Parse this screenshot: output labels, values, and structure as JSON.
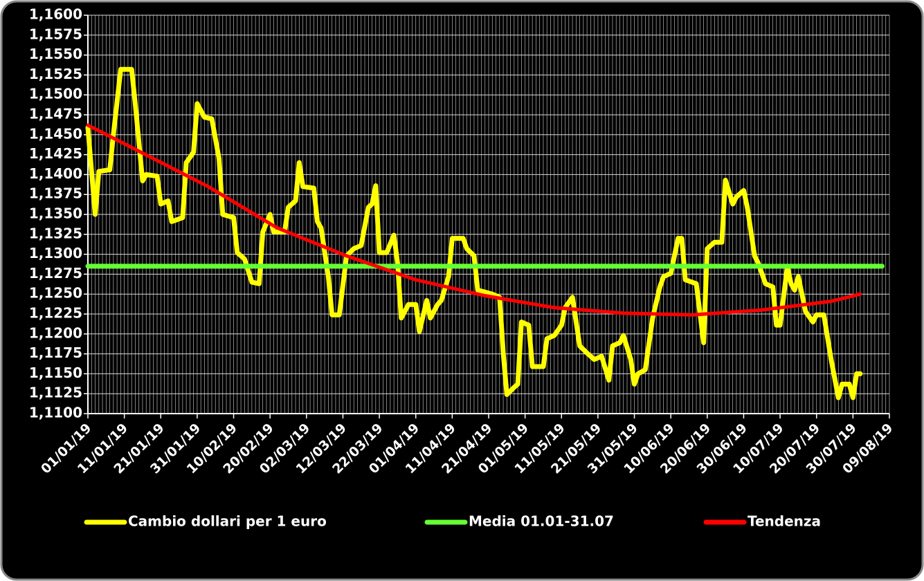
{
  "chart_data": {
    "type": "line",
    "xlim": [
      "01/01/19",
      "09/08/19"
    ],
    "xticks": [
      "01/01/19",
      "11/01/19",
      "21/01/19",
      "31/01/19",
      "10/02/19",
      "20/02/19",
      "02/03/19",
      "12/03/19",
      "22/03/19",
      "01/04/19",
      "11/04/19",
      "21/04/19",
      "01/05/19",
      "11/05/19",
      "21/05/19",
      "31/05/19",
      "10/06/19",
      "20/06/19",
      "30/06/19",
      "10/07/19",
      "20/07/19",
      "30/07/19",
      "09/08/19"
    ],
    "ylim": [
      1.11,
      1.16
    ],
    "yticks": [
      {
        "value": 1.11,
        "label": "1,1100"
      },
      {
        "value": 1.1125,
        "label": "1,1125"
      },
      {
        "value": 1.115,
        "label": "1,1150"
      },
      {
        "value": 1.1175,
        "label": "1,1175"
      },
      {
        "value": 1.12,
        "label": "1,1200"
      },
      {
        "value": 1.1225,
        "label": "1,1225"
      },
      {
        "value": 1.125,
        "label": "1,1250"
      },
      {
        "value": 1.1275,
        "label": "1,1275"
      },
      {
        "value": 1.13,
        "label": "1,1300"
      },
      {
        "value": 1.1325,
        "label": "1,1325"
      },
      {
        "value": 1.135,
        "label": "1,1350"
      },
      {
        "value": 1.1375,
        "label": "1,1375"
      },
      {
        "value": 1.14,
        "label": "1,1400"
      },
      {
        "value": 1.1425,
        "label": "1,1425"
      },
      {
        "value": 1.145,
        "label": "1,1450"
      },
      {
        "value": 1.1475,
        "label": "1,1475"
      },
      {
        "value": 1.15,
        "label": "1,1500"
      },
      {
        "value": 1.1525,
        "label": "1,1525"
      },
      {
        "value": 1.155,
        "label": "1,1550"
      },
      {
        "value": 1.1575,
        "label": "1,1575"
      },
      {
        "value": 1.16,
        "label": "1,1600"
      }
    ],
    "grid": true,
    "legend": "bottom",
    "series": [
      {
        "name": "Cambio dollari per 1 euro",
        "color": "#ffff00",
        "x": [
          "01/01/19",
          "03/01/19",
          "04/01/19",
          "07/01/19",
          "08/01/19",
          "10/01/19",
          "13/01/19",
          "14/01/19",
          "16/01/19",
          "17/01/19",
          "20/01/19",
          "21/01/19",
          "23/01/19",
          "24/01/19",
          "27/01/19",
          "28/01/19",
          "30/01/19",
          "31/01/19",
          "02/02/19",
          "04/02/19",
          "06/02/19",
          "07/02/19",
          "10/02/19",
          "11/02/19",
          "13/02/19",
          "15/02/19",
          "17/02/19",
          "18/02/19",
          "20/02/19",
          "21/02/19",
          "24/02/19",
          "25/02/19",
          "27/02/19",
          "28/02/19",
          "01/03/19",
          "04/03/19",
          "05/03/19",
          "06/03/19",
          "08/03/19",
          "09/03/19",
          "11/03/19",
          "13/03/19",
          "15/03/19",
          "17/03/19",
          "19/03/19",
          "20/03/19",
          "21/03/19",
          "22/03/19",
          "24/03/19",
          "26/03/19",
          "27/03/19",
          "28/03/19",
          "30/03/19",
          "01/04/19",
          "02/04/19",
          "04/04/19",
          "05/04/19",
          "07/04/19",
          "08/04/19",
          "10/04/19",
          "11/04/19",
          "14/04/19",
          "15/04/19",
          "17/04/19",
          "18/04/19",
          "22/04/19",
          "24/04/19",
          "25/04/19",
          "26/04/19",
          "28/04/19",
          "29/04/19",
          "30/04/19",
          "02/05/19",
          "03/05/19",
          "06/05/19",
          "07/05/19",
          "09/05/19",
          "11/05/19",
          "12/05/19",
          "14/05/19",
          "16/05/19",
          "18/05/19",
          "19/05/19",
          "20/05/19",
          "22/05/19",
          "24/05/19",
          "25/05/19",
          "27/05/19",
          "28/05/19",
          "30/05/19",
          "31/05/19",
          "01/06/19",
          "03/06/19",
          "05/06/19",
          "07/06/19",
          "08/06/19",
          "10/06/19",
          "12/06/19",
          "13/06/19",
          "14/06/19",
          "17/06/19",
          "19/06/19",
          "20/06/19",
          "22/06/19",
          "24/06/19",
          "25/06/19",
          "27/06/19",
          "28/06/19",
          "30/06/19",
          "01/07/19",
          "03/07/19",
          "04/07/19",
          "06/07/19",
          "08/07/19",
          "09/07/19",
          "10/07/19",
          "12/07/19",
          "13/07/19",
          "14/07/19",
          "15/07/19",
          "17/07/19",
          "19/07/19",
          "20/07/19",
          "22/07/19",
          "24/07/19",
          "26/07/19",
          "27/07/19",
          "29/07/19",
          "30/07/19",
          "31/07/19",
          "01/08/19"
        ],
        "values": [
          1.1459,
          1.135,
          1.1404,
          1.1406,
          1.145,
          1.1532,
          1.1532,
          1.1489,
          1.1392,
          1.14,
          1.1398,
          1.1363,
          1.1367,
          1.1341,
          1.1346,
          1.1415,
          1.1428,
          1.1489,
          1.1472,
          1.147,
          1.142,
          1.135,
          1.1346,
          1.1302,
          1.1294,
          1.1265,
          1.1263,
          1.1328,
          1.135,
          1.1328,
          1.1328,
          1.1359,
          1.1367,
          1.1415,
          1.1385,
          1.1383,
          1.1341,
          1.1333,
          1.1272,
          1.1224,
          1.1224,
          1.1298,
          1.1307,
          1.1311,
          1.1359,
          1.1363,
          1.1386,
          1.1302,
          1.1302,
          1.1324,
          1.1289,
          1.122,
          1.1237,
          1.1237,
          1.1203,
          1.1242,
          1.122,
          1.1237,
          1.1242,
          1.1272,
          1.132,
          1.132,
          1.1307,
          1.1298,
          1.1255,
          1.125,
          1.1246,
          1.1176,
          1.1124,
          1.1133,
          1.1137,
          1.1215,
          1.1211,
          1.1159,
          1.1159,
          1.1194,
          1.1198,
          1.1211,
          1.1233,
          1.1246,
          1.1185,
          1.1176,
          1.1172,
          1.1168,
          1.1172,
          1.1142,
          1.1185,
          1.1189,
          1.1198,
          1.1168,
          1.1137,
          1.115,
          1.1155,
          1.122,
          1.1259,
          1.1272,
          1.1276,
          1.132,
          1.132,
          1.1268,
          1.1263,
          1.1189,
          1.1307,
          1.1315,
          1.1315,
          1.1393,
          1.1363,
          1.1372,
          1.138,
          1.1359,
          1.1298,
          1.1289,
          1.1263,
          1.1259,
          1.1211,
          1.1211,
          1.1285,
          1.1263,
          1.1255,
          1.1272,
          1.1228,
          1.1215,
          1.1224,
          1.1224,
          1.1168,
          1.112,
          1.1137,
          1.1137,
          1.112,
          1.115,
          1.115
        ]
      },
      {
        "name": "Media 01.01-31.07",
        "color": "#66ff33",
        "x": [
          "01/01/19",
          "07/08/19"
        ],
        "values": [
          1.1285,
          1.1285
        ]
      },
      {
        "name": "Tendenza",
        "color": "#ff0000",
        "x": [
          "01/01/19",
          "03/02/19",
          "22/02/19",
          "13/03/19",
          "01/04/19",
          "20/04/19",
          "09/05/19",
          "28/05/19",
          "16/06/19",
          "05/07/19",
          "24/07/19",
          "01/08/19"
        ],
        "values": [
          1.1462,
          1.1385,
          1.1333,
          1.1298,
          1.1268,
          1.1248,
          1.1233,
          1.1226,
          1.1224,
          1.123,
          1.1241,
          1.125
        ]
      }
    ]
  }
}
